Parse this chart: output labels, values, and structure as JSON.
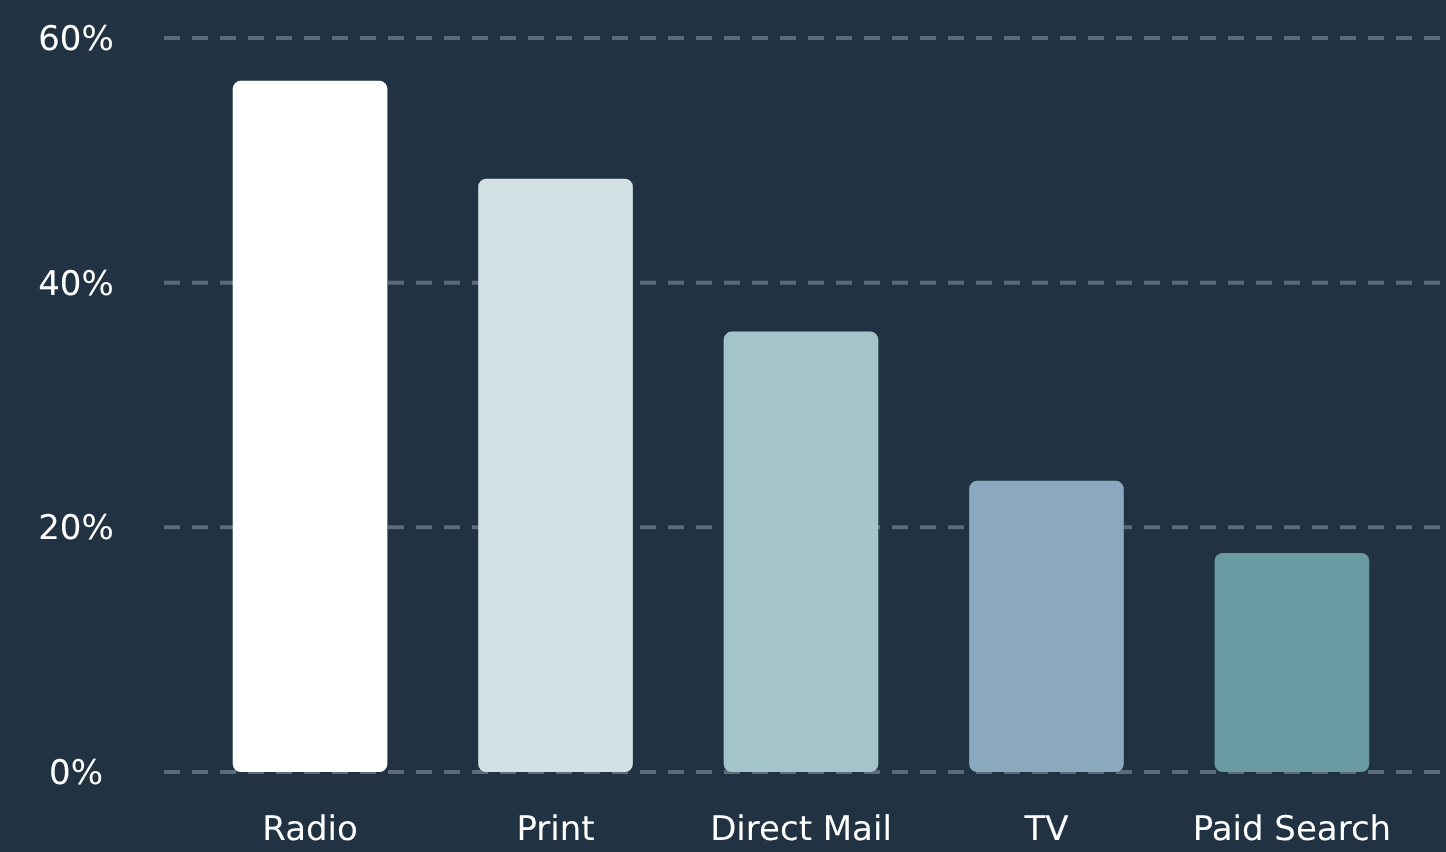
{
  "chart_data": {
    "type": "bar",
    "categories": [
      "Radio",
      "Print",
      "Direct Mail",
      "TV",
      "Paid Search"
    ],
    "values": [
      56.5,
      48.5,
      36,
      23.8,
      17.9
    ],
    "colors": [
      "#ffffff",
      "#d3e1e5",
      "#a3c4c8",
      "#8aa9bf",
      "#6a9ba3"
    ],
    "ylim": [
      0,
      60
    ],
    "yticks": [
      {
        "value": 0,
        "label": "0%"
      },
      {
        "value": 20,
        "label": "20%"
      },
      {
        "value": 40,
        "label": "40%"
      },
      {
        "value": 60,
        "label": "60%"
      }
    ],
    "grid": "y"
  }
}
